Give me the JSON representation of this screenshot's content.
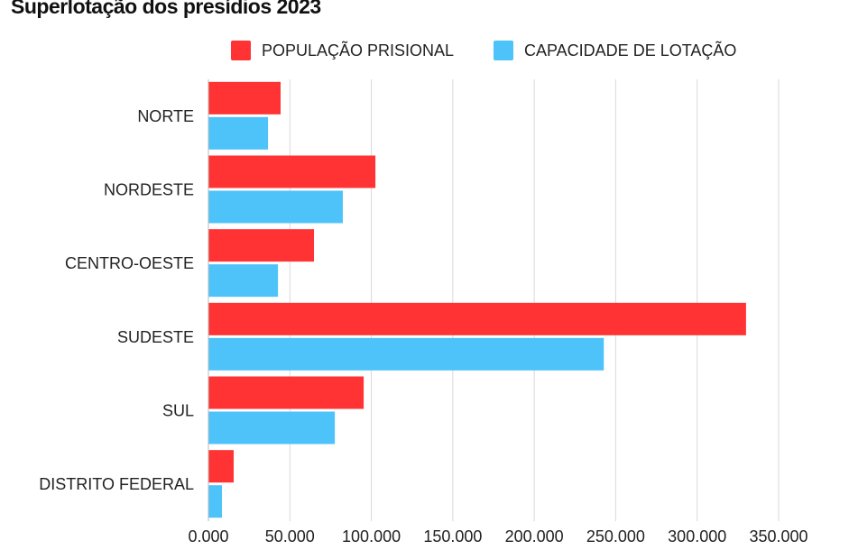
{
  "chart_data": {
    "type": "bar",
    "orientation": "horizontal",
    "title": "Superlotação dos presídios 2023",
    "categories": [
      "NORTE",
      "NORDESTE",
      "CENTRO-OESTE",
      "SUDESTE",
      "SUL",
      "DISTRITO FEDERAL"
    ],
    "series": [
      {
        "name": "POPULAÇÃO PRISIONAL",
        "color": "#ff3333",
        "values": [
          44300,
          102500,
          64800,
          330000,
          95300,
          15500
        ]
      },
      {
        "name": "CAPACIDADE DE LOTAÇÃO",
        "color": "#4dc3fa",
        "values": [
          36600,
          82500,
          42700,
          242700,
          77600,
          8300
        ]
      }
    ],
    "xticks": [
      0,
      50000,
      100000,
      150000,
      200000,
      250000,
      300000,
      350000
    ],
    "xtick_labels": [
      "0.000",
      "50.000",
      "100.000",
      "150.000",
      "200.000",
      "250.000",
      "300.000",
      "350.000"
    ],
    "xlim": [
      0,
      350000
    ],
    "grid": true,
    "legend": "top-center",
    "xlabel": "",
    "ylabel": ""
  }
}
